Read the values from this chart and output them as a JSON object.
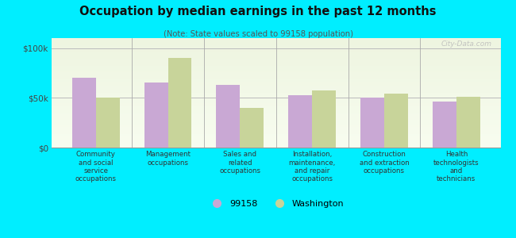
{
  "title": "Occupation by median earnings in the past 12 months",
  "subtitle": "(Note: State values scaled to 99158 population)",
  "categories": [
    "Community\nand social\nservice\noccupations",
    "Management\noccupations",
    "Sales and\nrelated\noccupations",
    "Installation,\nmaintenance,\nand repair\noccupations",
    "Construction\nand extraction\noccupations",
    "Health\ntechnologists\nand\ntechnicians"
  ],
  "values_99158": [
    70000,
    65000,
    63000,
    53000,
    50000,
    46000
  ],
  "values_washington": [
    50000,
    90000,
    40000,
    57000,
    54000,
    51000
  ],
  "bar_color_99158": "#c9a8d4",
  "bar_color_washington": "#c8d49a",
  "background_color": "#00eeff",
  "plot_bg_color1": "#eef5e0",
  "plot_bg_color2": "#f8fdf0",
  "ylim": [
    0,
    110000
  ],
  "yticks": [
    0,
    50000,
    100000
  ],
  "ytick_labels": [
    "$0",
    "$50k",
    "$100k"
  ],
  "legend_label_99158": "99158",
  "legend_label_washington": "Washington",
  "watermark": "City-Data.com"
}
